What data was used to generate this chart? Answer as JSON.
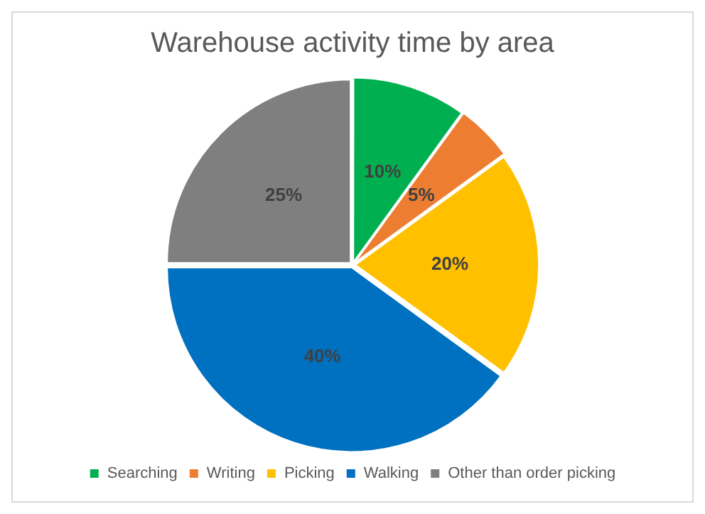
{
  "chart_data": {
    "type": "pie",
    "title": "Warehouse activity time by area",
    "categories": [
      "Searching",
      "Writing",
      "Picking",
      "Walking",
      "Other than order picking"
    ],
    "values": [
      10,
      5,
      20,
      40,
      25
    ],
    "colors": [
      "#00b050",
      "#ed7d31",
      "#ffc000",
      "#0070c0",
      "#7f7f7f"
    ],
    "value_labels": [
      "10%",
      "5%",
      "20%",
      "40%",
      "25%"
    ],
    "legend": "bottom"
  }
}
